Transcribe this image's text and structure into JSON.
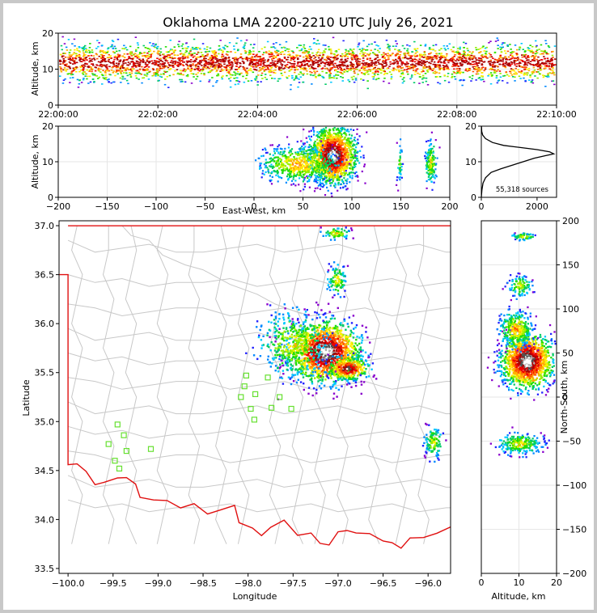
{
  "title": "Oklahoma LMA 2200-2210 UTC July 26, 2021",
  "chart_data": [
    {
      "type": "heatmap",
      "name": "altitude-time",
      "ylabel": "Altitude, km",
      "xticks": [
        "22:00:00",
        "22:02:00",
        "22:04:00",
        "22:06:00",
        "22:08:00",
        "22:10:00"
      ],
      "yticks": [
        "0",
        "10",
        "20"
      ],
      "ylim": [
        0,
        20
      ],
      "x_start_minutes": 0,
      "x_end_minutes": 10,
      "band_center_km": 12,
      "band_spread_km": 2.5,
      "colormap": "rainbow density"
    },
    {
      "type": "heatmap",
      "name": "altitude-eastwest",
      "xlabel": "East-West, km",
      "ylabel": "Altitude, km",
      "xlim": [
        -200,
        200
      ],
      "ylim": [
        0,
        20
      ],
      "xticks": [
        "−200",
        "−150",
        "−100",
        "−50",
        "0",
        "50",
        "100",
        "150",
        "200"
      ],
      "yticks": [
        "0",
        "10",
        "20"
      ]
    },
    {
      "type": "line",
      "name": "altitude-histogram",
      "xlim": [
        0,
        2700
      ],
      "ylim": [
        0,
        20
      ],
      "xticks": [
        "0",
        "2000"
      ],
      "yticks": [
        "0",
        "10",
        "20"
      ],
      "annotation": "55,318 sources",
      "x": [
        0,
        20,
        60,
        150,
        350,
        700,
        1100,
        1500,
        1900,
        2300,
        2600,
        2450,
        2000,
        1400,
        800,
        400,
        150,
        50,
        15,
        5
      ],
      "y": [
        0,
        2,
        4,
        5.5,
        7,
        8,
        9,
        10,
        11,
        11.7,
        12.2,
        12.8,
        13.4,
        14,
        14.6,
        15.4,
        16.5,
        17.5,
        18.5,
        20
      ]
    },
    {
      "type": "heatmap",
      "name": "plan-view",
      "xlabel": "Longitude",
      "ylabel": "Latitude",
      "xlim": [
        -100.1,
        -95.75
      ],
      "ylim": [
        33.45,
        37.05
      ],
      "xticks": [
        "−100.0",
        "−99.5",
        "−99.0",
        "−98.5",
        "−98.0",
        "−97.5",
        "−97.0",
        "−96.5",
        "−96.0"
      ],
      "yticks": [
        "33.5",
        "34.0",
        "34.5",
        "35.0",
        "35.5",
        "36.0",
        "36.5",
        "37.0"
      ],
      "stations": [
        [
          -99.45,
          34.97
        ],
        [
          -99.38,
          34.86
        ],
        [
          -99.55,
          34.77
        ],
        [
          -99.35,
          34.7
        ],
        [
          -99.08,
          34.72
        ],
        [
          -99.48,
          34.6
        ],
        [
          -99.43,
          34.52
        ],
        [
          -98.02,
          35.47
        ],
        [
          -98.04,
          35.36
        ],
        [
          -97.78,
          35.45
        ],
        [
          -97.92,
          35.28
        ],
        [
          -98.08,
          35.25
        ],
        [
          -97.65,
          35.25
        ],
        [
          -97.97,
          35.13
        ],
        [
          -97.74,
          35.14
        ],
        [
          -97.52,
          35.13
        ],
        [
          -97.93,
          35.02
        ]
      ]
    },
    {
      "type": "heatmap",
      "name": "northsouth-altitude",
      "xlabel": "Altitude, km",
      "ylabel": "North-South, km",
      "xlim": [
        0,
        20
      ],
      "ylim": [
        -200,
        200
      ],
      "xticks": [
        "0",
        "10",
        "20"
      ],
      "yticks": [
        "−200",
        "−150",
        "−100",
        "−50",
        "0",
        "50",
        "100",
        "150",
        "200"
      ]
    }
  ]
}
